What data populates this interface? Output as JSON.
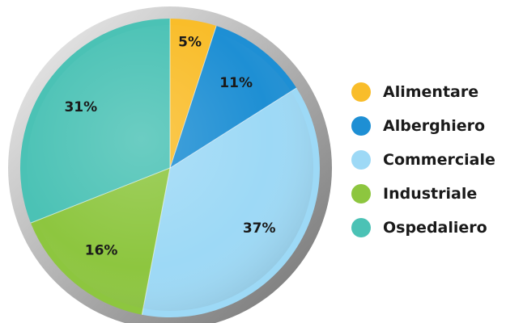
{
  "chart_data": {
    "type": "pie",
    "categories": [
      "Alimentare",
      "Alberghiero",
      "Commerciale",
      "Industriale",
      "Ospedaliero"
    ],
    "values": [
      5,
      11,
      37,
      16,
      31
    ],
    "labels": [
      "5%",
      "11%",
      "37%",
      "16%",
      "31%"
    ],
    "colors": [
      "#f9bd2a",
      "#1e8fd4",
      "#9dd9f6",
      "#8dc63f",
      "#4bc2b5"
    ],
    "title": "",
    "legend_position": "right"
  }
}
